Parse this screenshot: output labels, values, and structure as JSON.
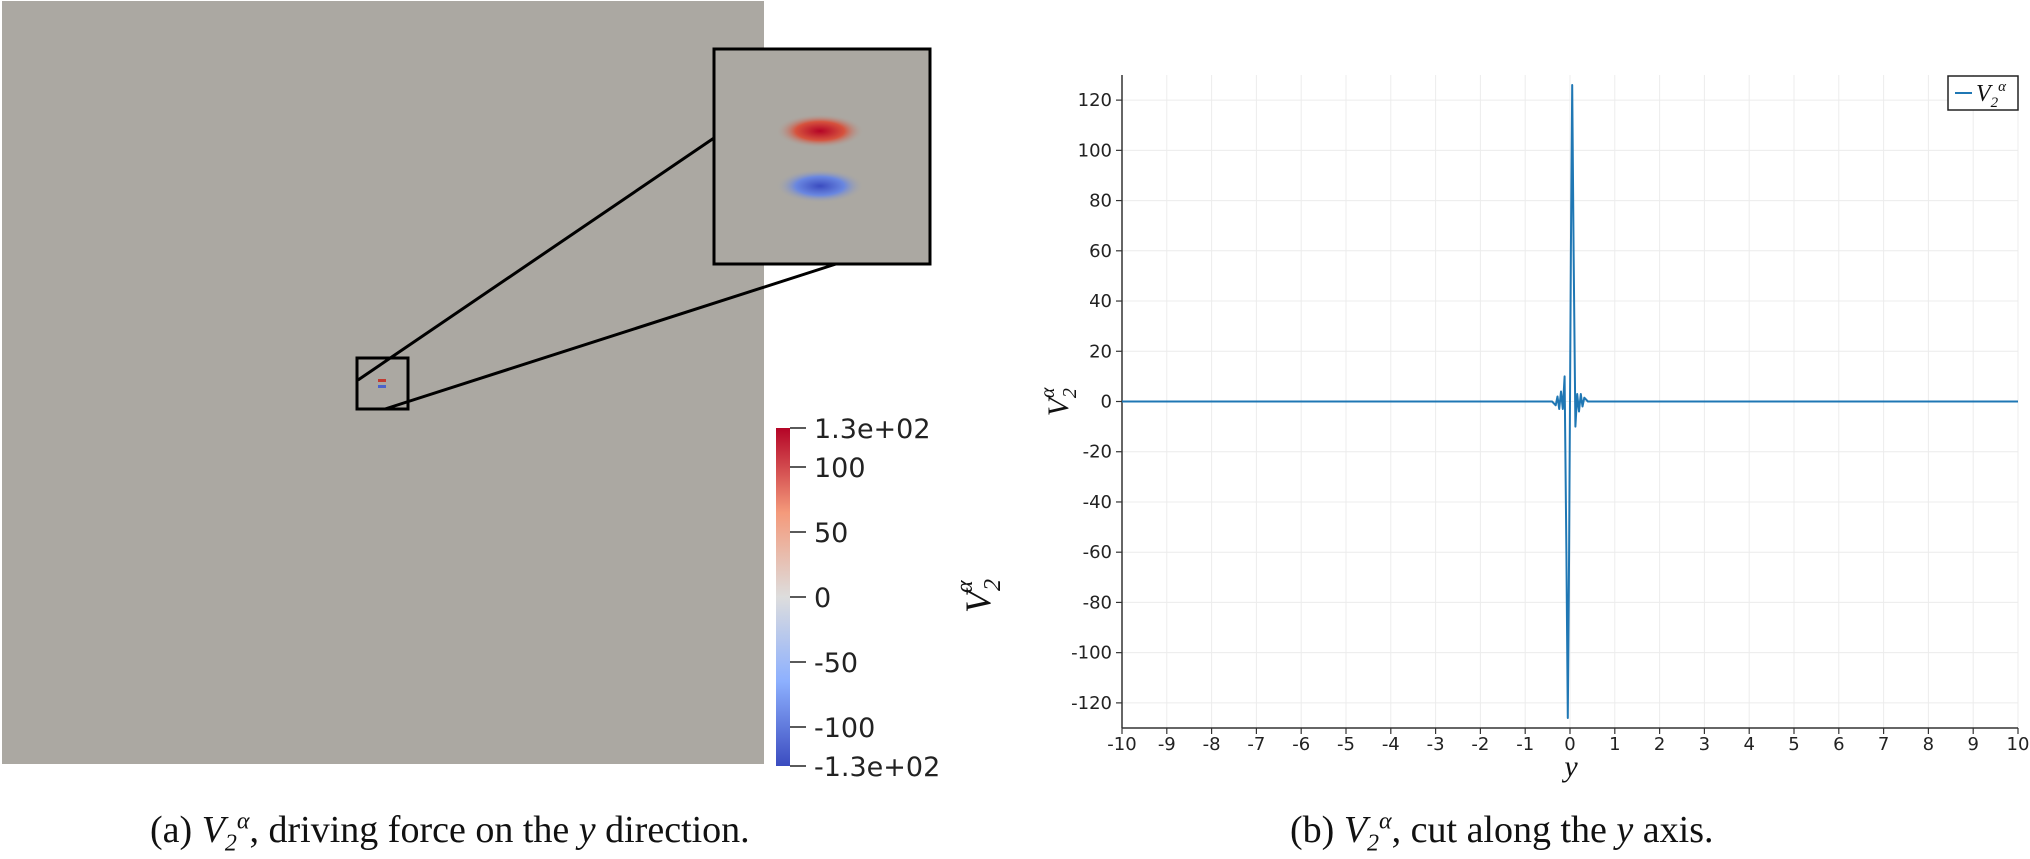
{
  "panel_a": {
    "colorbar_title_base": "V",
    "colorbar_title_sub": "2",
    "colorbar_title_sup": "α",
    "colorbar_ticks": [
      "1.3e+02",
      "100",
      "50",
      "0",
      "-50",
      "-100",
      "-1.3e+02"
    ],
    "colors": {
      "background": "#aba8a2",
      "positive": "#b40426",
      "negative": "#3b4cc0",
      "neutral": "#dddddd"
    },
    "caption": {
      "prefix": "(a) ",
      "var": "V",
      "sub": "2",
      "sup": "α",
      "middle": ", driving force on the ",
      "axis": "y",
      "suffix": " direction."
    }
  },
  "panel_b": {
    "caption": {
      "prefix": "(b) ",
      "var": "V",
      "sub": "2",
      "sup": "α",
      "middle": ", cut along the ",
      "axis": "y",
      "suffix": " axis."
    }
  },
  "chart_data": {
    "type": "line",
    "title": "",
    "xlabel": "y",
    "ylabel": "V2α",
    "xlim": [
      -10,
      10
    ],
    "ylim": [
      -130,
      130
    ],
    "xticks": [
      -10,
      -9,
      -8,
      -7,
      -6,
      -5,
      -4,
      -3,
      -2,
      -1,
      0,
      1,
      2,
      3,
      4,
      5,
      6,
      7,
      8,
      9,
      10
    ],
    "yticks": [
      -120,
      -100,
      -80,
      -60,
      -40,
      -20,
      0,
      20,
      40,
      60,
      80,
      100,
      120
    ],
    "grid": true,
    "legend_position": "top-right",
    "series": [
      {
        "name": "V2α",
        "color": "#1f77b4",
        "x": [
          -10,
          -0.4,
          -0.32,
          -0.28,
          -0.24,
          -0.2,
          -0.16,
          -0.12,
          -0.08,
          -0.05,
          -0.02,
          0.0,
          0.02,
          0.05,
          0.08,
          0.12,
          0.16,
          0.2,
          0.24,
          0.28,
          0.32,
          0.4,
          10
        ],
        "y": [
          0,
          0,
          -1.5,
          2,
          -3,
          4,
          -3,
          10,
          -60,
          -126,
          -60,
          0,
          60,
          126,
          60,
          -10,
          3,
          -4,
          3,
          -2,
          1.5,
          0,
          0
        ]
      }
    ]
  }
}
